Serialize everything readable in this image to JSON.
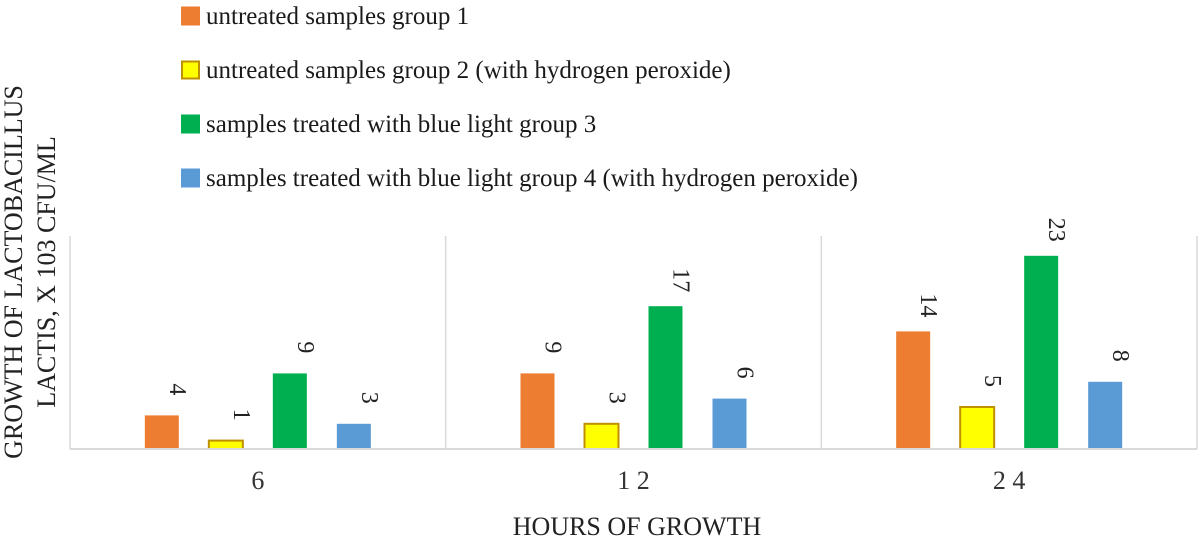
{
  "chart_data": {
    "type": "bar",
    "title": "",
    "xlabel": "HOURS OF GROWTH",
    "ylabel_line1": "GROWTH OF LACTOBACILLUS",
    "ylabel_line2": "LACTIS, X 103 CFU/ML",
    "categories": [
      "6",
      "12",
      "24"
    ],
    "category_labels": [
      "6",
      "1 2",
      "2 4"
    ],
    "ylim": [
      0,
      25
    ],
    "grid": false,
    "legend_position": "top-left",
    "data_labels": true,
    "series": [
      {
        "name": "untreated samples group 1",
        "values": [
          4,
          9,
          14
        ],
        "color": "#ED7D31",
        "stroke": "#ED7D31"
      },
      {
        "name": "untreated samples group 2 (with hydrogen peroxide)",
        "values": [
          1,
          3,
          5
        ],
        "color": "#FFFF00",
        "stroke": "#BF9000"
      },
      {
        "name": "samples treated with blue light group 3",
        "values": [
          9,
          17,
          23
        ],
        "color": "#00B050",
        "stroke": "#00B050"
      },
      {
        "name": "samples treated with blue light group 4 (with hydrogen peroxide)",
        "values": [
          3,
          6,
          8
        ],
        "color": "#5B9BD5",
        "stroke": "#5B9BD5"
      }
    ]
  }
}
